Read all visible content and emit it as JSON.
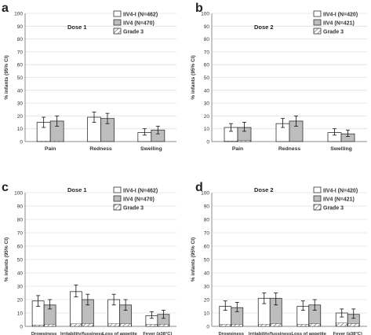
{
  "colors": {
    "iiv4_i": "#ffffff",
    "iiv4": "#bdbdbd",
    "grade3_hatch": "#555555",
    "axis": "#8c8c8c",
    "grid": "#e0e0e0",
    "text": "#333333"
  },
  "chart_data": [
    {
      "type": "bar",
      "panel_letter": "a",
      "title": "Dose 1",
      "ylabel": "% infants (95% CI)",
      "ylim": [
        0,
        100
      ],
      "yticks": [
        0,
        10,
        20,
        30,
        40,
        50,
        60,
        70,
        80,
        90,
        100
      ],
      "grid": true,
      "legend_position": "top-right",
      "categories": [
        "Pain",
        "Redness",
        "Swelling"
      ],
      "series": [
        {
          "name": "IIV4-I (N=462)",
          "values": [
            15,
            19,
            7
          ],
          "ci_low": [
            11,
            15,
            5
          ],
          "ci_high": [
            19,
            23,
            10
          ],
          "grade3": [
            0.4,
            0,
            0
          ]
        },
        {
          "name": "IIV4 (N=470)",
          "values": [
            16,
            18,
            9
          ],
          "ci_low": [
            12,
            14,
            6
          ],
          "ci_high": [
            20,
            22,
            12
          ],
          "grade3": [
            0.4,
            0,
            0
          ]
        }
      ],
      "legend_grade3": "Grade 3"
    },
    {
      "type": "bar",
      "panel_letter": "b",
      "title": "Dose 2",
      "ylabel": "% infants (95% CI)",
      "ylim": [
        0,
        100
      ],
      "yticks": [
        0,
        10,
        20,
        30,
        40,
        50,
        60,
        70,
        80,
        90,
        100
      ],
      "grid": true,
      "legend_position": "top-right",
      "categories": [
        "Pain",
        "Redness",
        "Swelling"
      ],
      "series": [
        {
          "name": "IIV4-I (N=420)",
          "values": [
            11,
            14,
            7
          ],
          "ci_low": [
            8,
            11,
            5
          ],
          "ci_high": [
            14,
            18,
            10
          ],
          "grade3": [
            0.5,
            0,
            0
          ]
        },
        {
          "name": "IIV4 (N=421)",
          "values": [
            11,
            16,
            6
          ],
          "ci_low": [
            8,
            12,
            4
          ],
          "ci_high": [
            15,
            20,
            9
          ],
          "grade3": [
            0.7,
            0,
            0
          ]
        }
      ],
      "legend_grade3": "Grade 3"
    },
    {
      "type": "bar",
      "panel_letter": "c",
      "title": "Dose 1",
      "ylabel": "% infants (95% CI)",
      "ylim": [
        0,
        100
      ],
      "yticks": [
        0,
        10,
        20,
        30,
        40,
        50,
        60,
        70,
        80,
        90,
        100
      ],
      "grid": true,
      "legend_position": "top-right",
      "categories": [
        "Drowsiness",
        "Irritability/fussiness",
        "Loss of appetite",
        "Fever (≥38°C)"
      ],
      "series": [
        {
          "name": "IIV4-I (N=462)",
          "values": [
            19,
            26,
            20,
            8
          ],
          "ci_low": [
            15,
            22,
            16,
            6
          ],
          "ci_high": [
            23,
            31,
            24,
            11
          ],
          "grade3": [
            1,
            2,
            2,
            1.5
          ]
        },
        {
          "name": "IIV4 (N=470)",
          "values": [
            16,
            20,
            16,
            9
          ],
          "ci_low": [
            13,
            16,
            12,
            6
          ],
          "ci_high": [
            20,
            24,
            20,
            12
          ],
          "grade3": [
            1.5,
            2,
            2,
            1.5
          ]
        }
      ],
      "legend_grade3": "Grade 3"
    },
    {
      "type": "bar",
      "panel_letter": "d",
      "title": "Dose 2",
      "ylabel": "% infants (95% CI)",
      "ylim": [
        0,
        100
      ],
      "yticks": [
        0,
        10,
        20,
        30,
        40,
        50,
        60,
        70,
        80,
        90,
        100
      ],
      "grid": true,
      "legend_position": "top-right",
      "categories": [
        "Drowsiness",
        "Irritability/fussiness",
        "Loss of appetite",
        "Fever (≥38°C)"
      ],
      "series": [
        {
          "name": "IIV4-I (N=420)",
          "values": [
            15,
            21,
            15,
            10
          ],
          "ci_low": [
            12,
            17,
            12,
            7
          ],
          "ci_high": [
            19,
            25,
            19,
            13
          ],
          "grade3": [
            1.5,
            1.5,
            1.5,
            2.5
          ]
        },
        {
          "name": "IIV4 (N=421)",
          "values": [
            14,
            21,
            16,
            9
          ],
          "ci_low": [
            11,
            16,
            12,
            6
          ],
          "ci_high": [
            18,
            25,
            20,
            13
          ],
          "grade3": [
            1.5,
            2,
            2,
            2
          ]
        }
      ],
      "legend_grade3": "Grade 3"
    }
  ]
}
